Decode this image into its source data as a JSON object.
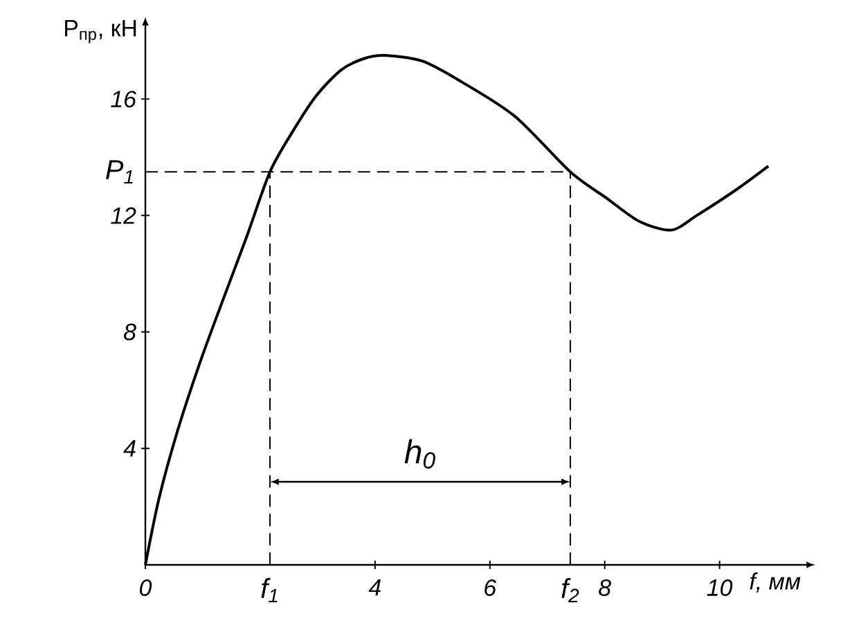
{
  "chart_data": {
    "type": "line",
    "xlabel": "f, мм",
    "ylabel": "P$_{пр}$, кН",
    "x": [
      0,
      0.24,
      0.56,
      0.96,
      1.37,
      1.77,
      2.17,
      2.57,
      2.97,
      3.41,
      3.82,
      4.18,
      4.83,
      5.5,
      6.44,
      7.4,
      8.03,
      8.6,
      9.16,
      9.6,
      10.3,
      10.85
    ],
    "series": [
      {
        "color": "#000000",
        "values": [
          0,
          2.3,
          4.6,
          7.0,
          9.2,
          11.3,
          13.5,
          14.9,
          16.1,
          17.0,
          17.4,
          17.5,
          17.3,
          16.6,
          15.4,
          13.5,
          12.6,
          11.8,
          11.5,
          12.0,
          12.9,
          13.7
        ]
      }
    ],
    "xlim": [
      0,
      11.5
    ],
    "ylim": [
      0,
      18.5
    ],
    "xticks": [
      0,
      4,
      6,
      8,
      10
    ],
    "yticks": [
      4,
      8,
      12,
      16
    ],
    "ref_lines": [
      {
        "axis": "y",
        "value": 13.5,
        "label": "P$_{1}$",
        "line_style": "dashed"
      },
      {
        "axis": "x",
        "value": 2.17,
        "label": "f$_{1}$",
        "line_style": "dashed"
      },
      {
        "axis": "x",
        "value": 7.4,
        "label": "f$_{2}$",
        "line_style": "dashed"
      }
    ],
    "annotations": [
      "h$_{0}$"
    ],
    "grid": false,
    "marker": "none",
    "line_style": "solid"
  }
}
